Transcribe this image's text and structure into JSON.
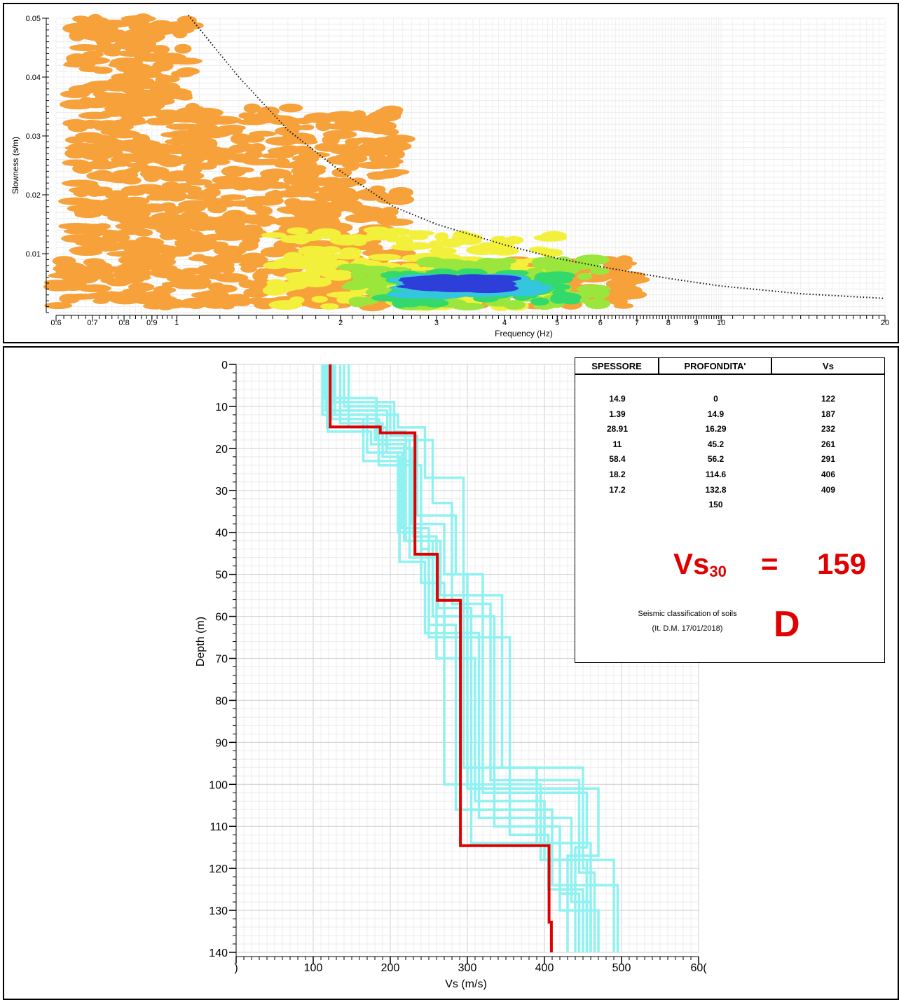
{
  "colors": {
    "orange": "#f7a13b",
    "yellow": "#f3f03c",
    "lime": "#9be63c",
    "green": "#33d96b",
    "cyan": "#34c6df",
    "blue": "#2d3fd8",
    "profile_red": "#e00000",
    "profile_cyan": "#8ff2f0"
  },
  "chart_data": [
    {
      "type": "heatmap",
      "name": "dispersion",
      "xlabel": "Frequency (Hz)",
      "ylabel": "Slowness (s/m)",
      "xscale": "log",
      "xlim": [
        0.6,
        20
      ],
      "ylim": [
        0,
        0.05
      ],
      "xticks": [
        {
          "v": 0.6,
          "l": "0.6"
        },
        {
          "v": 0.7,
          "l": "0.7"
        },
        {
          "v": 0.8,
          "l": "0.8"
        },
        {
          "v": 0.9,
          "l": "0.9"
        },
        {
          "v": 1,
          "l": "1"
        },
        {
          "v": 2,
          "l": "2"
        },
        {
          "v": 3,
          "l": "3"
        },
        {
          "v": 4,
          "l": "4"
        },
        {
          "v": 5,
          "l": "5"
        },
        {
          "v": 6,
          "l": "6"
        },
        {
          "v": 7,
          "l": "7"
        },
        {
          "v": 8,
          "l": "8"
        },
        {
          "v": 9,
          "l": "9"
        },
        {
          "v": 10,
          "l": "10"
        },
        {
          "v": 20,
          "l": "20"
        }
      ],
      "yticks": [
        {
          "v": 0.01,
          "l": "0.01"
        },
        {
          "v": 0.02,
          "l": "0.02"
        },
        {
          "v": 0.03,
          "l": "0.03"
        },
        {
          "v": 0.04,
          "l": "0.04"
        },
        {
          "v": 0.05,
          "l": "0.05"
        }
      ],
      "limit_curve": [
        [
          1.05,
          0.0505
        ],
        [
          1.3,
          0.04
        ],
        [
          1.6,
          0.031
        ],
        [
          2,
          0.024
        ],
        [
          2.5,
          0.018
        ],
        [
          3,
          0.015
        ],
        [
          4,
          0.0115
        ],
        [
          5,
          0.0092
        ],
        [
          6,
          0.0078
        ],
        [
          8,
          0.0058
        ],
        [
          10,
          0.0045
        ],
        [
          14,
          0.0032
        ],
        [
          20,
          0.0024
        ]
      ],
      "energy_bands": [
        {
          "level": 1,
          "f": [
            0.6,
            7
          ],
          "s": [
            0.001,
            0.009
          ]
        },
        {
          "level": 1,
          "f": [
            0.65,
            1.05
          ],
          "s": [
            0.009,
            0.05
          ]
        },
        {
          "level": 1,
          "f": [
            1.05,
            2.6
          ],
          "s": [
            0.009,
            0.035
          ]
        },
        {
          "level": 2,
          "f": [
            1.5,
            5.2
          ],
          "s": [
            0.001,
            0.014
          ]
        },
        {
          "level": 3,
          "f": [
            2.1,
            6
          ],
          "s": [
            0.001,
            0.009
          ]
        },
        {
          "level": 4,
          "f": [
            2.4,
            5.4
          ],
          "s": [
            0.0015,
            0.007
          ]
        },
        {
          "level": 5,
          "f": [
            2.7,
            4.4
          ],
          "s": [
            0.003,
            0.006
          ]
        },
        {
          "level": 6,
          "f": [
            2.85,
            3.8
          ],
          "s": [
            0.004,
            0.0058
          ]
        }
      ]
    },
    {
      "type": "line",
      "name": "vs-profile",
      "xlabel": "Vs (m/s)",
      "ylabel": "Depth (m)",
      "xlim": [
        0,
        600
      ],
      "ylim": [
        0,
        140
      ],
      "xticks": [
        {
          "v": 0,
          "l": ")"
        },
        {
          "v": 100,
          "l": "100"
        },
        {
          "v": 200,
          "l": "200"
        },
        {
          "v": 300,
          "l": "300"
        },
        {
          "v": 400,
          "l": "400"
        },
        {
          "v": 500,
          "l": "500"
        },
        {
          "v": 600,
          "l": "60("
        }
      ],
      "yticks": [
        {
          "v": 0,
          "l": "0"
        },
        {
          "v": 10,
          "l": "10"
        },
        {
          "v": 20,
          "l": "20"
        },
        {
          "v": 30,
          "l": "30"
        },
        {
          "v": 40,
          "l": "40"
        },
        {
          "v": 50,
          "l": "50"
        },
        {
          "v": 60,
          "l": "60"
        },
        {
          "v": 70,
          "l": "70"
        },
        {
          "v": 80,
          "l": "80"
        },
        {
          "v": 90,
          "l": "90"
        },
        {
          "v": 100,
          "l": "100"
        },
        {
          "v": 110,
          "l": "110"
        },
        {
          "v": 120,
          "l": "120"
        },
        {
          "v": 130,
          "l": "130"
        },
        {
          "v": 140,
          "l": "140"
        }
      ],
      "best_model": {
        "thickness": [
          14.9,
          1.39,
          28.91,
          11,
          58.4,
          18.2,
          17.2
        ],
        "vs": [
          122,
          187,
          232,
          261,
          291,
          406,
          409
        ],
        "max_depth": 150
      },
      "alternative_models": [
        {
          "tops": [
            0,
            12,
            21,
            40,
            52,
            100,
            118
          ],
          "vs": [
            112,
            170,
            210,
            240,
            270,
            395,
            455
          ]
        },
        {
          "tops": [
            0,
            15,
            18,
            46,
            58,
            114,
            130
          ],
          "vs": [
            118,
            180,
            225,
            262,
            305,
            420,
            470
          ]
        },
        {
          "tops": [
            0,
            11,
            20,
            38,
            50,
            102,
            115
          ],
          "vs": [
            116,
            196,
            228,
            270,
            320,
            455,
            440
          ]
        },
        {
          "tops": [
            0,
            13,
            24,
            44,
            62,
            106,
            124
          ],
          "vs": [
            120,
            185,
            240,
            250,
            285,
            410,
            495
          ]
        },
        {
          "tops": [
            0,
            9,
            16,
            42,
            55,
            96,
            120
          ],
          "vs": [
            125,
            205,
            220,
            265,
            345,
            450,
            455
          ]
        },
        {
          "tops": [
            0,
            14,
            22,
            47,
            64,
            108,
            128
          ],
          "vs": [
            135,
            190,
            212,
            245,
            315,
            435,
            460
          ]
        },
        {
          "tops": [
            0,
            10,
            17,
            36,
            50,
            101,
            117
          ],
          "vs": [
            140,
            200,
            235,
            285,
            300,
            470,
            430
          ]
        },
        {
          "tops": [
            0,
            16,
            19,
            42,
            60,
            110,
            126
          ],
          "vs": [
            119,
            175,
            218,
            255,
            335,
            420,
            445
          ]
        },
        {
          "tops": [
            0,
            12,
            15,
            27,
            48,
            96,
            114
          ],
          "vs": [
            128,
            210,
            245,
            295,
            295,
            390,
            460
          ]
        },
        {
          "tops": [
            0,
            13,
            23,
            41,
            70,
            104,
            118
          ],
          "vs": [
            124,
            165,
            230,
            260,
            310,
            400,
            490
          ]
        },
        {
          "tops": [
            0,
            8,
            18,
            33,
            57,
            99,
            121
          ],
          "vs": [
            113,
            182,
            255,
            280,
            330,
            445,
            465
          ]
        },
        {
          "tops": [
            0,
            15,
            21,
            39,
            65,
            112,
            125
          ],
          "vs": [
            146,
            195,
            215,
            250,
            355,
            405,
            450
          ]
        }
      ]
    }
  ],
  "table": {
    "headers": [
      "SPESSORE",
      "PROFONDITA'",
      "Vs"
    ],
    "rows": [
      [
        "14.9",
        "0",
        "122"
      ],
      [
        "1.39",
        "14.9",
        "187"
      ],
      [
        "28.91",
        "16.29",
        "232"
      ],
      [
        "11",
        "45.2",
        "261"
      ],
      [
        "58.4",
        "56.2",
        "291"
      ],
      [
        "18.2",
        "114.6",
        "406"
      ],
      [
        "17.2",
        "132.8",
        "409"
      ],
      [
        "",
        "150",
        ""
      ]
    ]
  },
  "vs30": {
    "label": "Vs",
    "subscript": "30",
    "equals": "=",
    "value": "159"
  },
  "classification": {
    "line1": "Seismic classification of soils",
    "line2": "(It. D.M. 17/01/2018)",
    "class": "D"
  }
}
